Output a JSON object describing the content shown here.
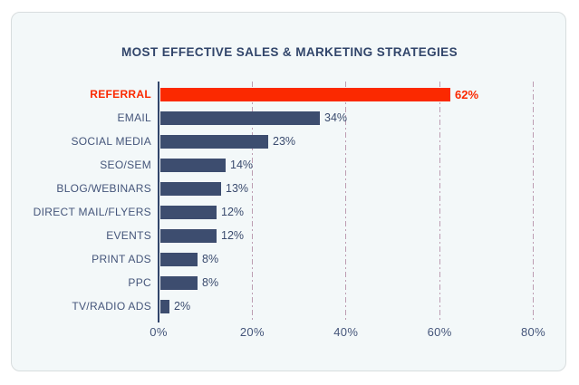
{
  "chart_data": {
    "type": "bar",
    "orientation": "horizontal",
    "title": "MOST EFFECTIVE SALES & MARKETING STRATEGIES",
    "categories": [
      "REFERRAL",
      "EMAIL",
      "SOCIAL MEDIA",
      "SEO/SEM",
      "BLOG/WEBINARS",
      "DIRECT MAIL/FLYERS",
      "EVENTS",
      "PRINT ADS",
      "PPC",
      "TV/RADIO ADS"
    ],
    "values": [
      62,
      34,
      23,
      14,
      13,
      12,
      12,
      8,
      8,
      2
    ],
    "value_labels": [
      "62%",
      "34%",
      "23%",
      "14%",
      "13%",
      "12%",
      "12%",
      "8%",
      "8%",
      "2%"
    ],
    "highlight_index": 0,
    "x_ticks": [
      0,
      20,
      40,
      60,
      80
    ],
    "x_tick_labels": [
      "0%",
      "20%",
      "40%",
      "60%",
      "80%"
    ],
    "xlim": [
      0,
      80
    ],
    "grid": "vertical-dash-dot",
    "legend": "none",
    "colors": {
      "bar": "#3D4D6F",
      "highlight": "#FB2900",
      "category_label": "#44557A",
      "title": "#31456A",
      "gridline": "#BD9DB2",
      "axis": "#31456A",
      "card_background": "#F3F8F9",
      "card_border": "#D8DDDE",
      "page_background": "#FFFFFF"
    }
  }
}
